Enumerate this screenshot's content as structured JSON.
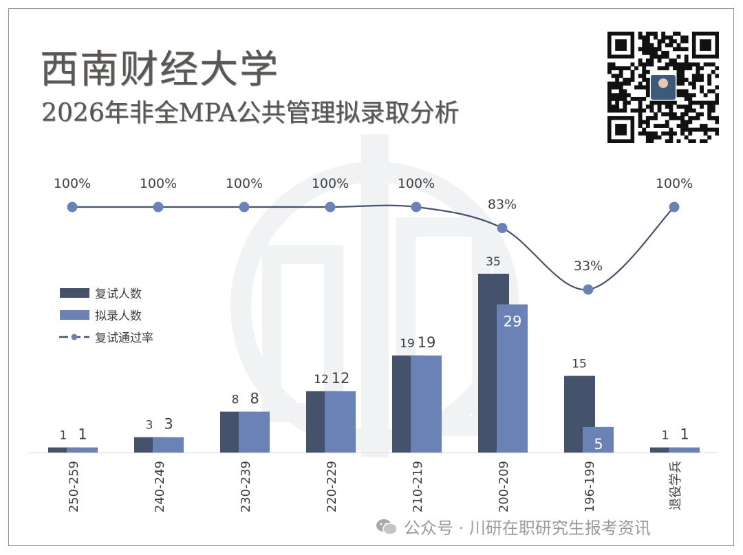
{
  "header": {
    "title": "西南财经大学",
    "subtitle": "2026年非全MPA公共管理拟录取分析"
  },
  "footer": {
    "icon": "wechat-icon",
    "text": "公众号 · 川研在职研究生报考资讯"
  },
  "chart_data": {
    "type": "bar",
    "categories": [
      "250-259",
      "240-249",
      "230-239",
      "220-229",
      "210-219",
      "200-209",
      "196-199",
      "退役学兵"
    ],
    "series": [
      {
        "name": "复试人数",
        "type": "bar",
        "color": "#44526b",
        "values": [
          1,
          3,
          8,
          12,
          19,
          35,
          15,
          1
        ]
      },
      {
        "name": "拟录人数",
        "type": "bar",
        "color": "#6a82b5",
        "values": [
          1,
          3,
          8,
          12,
          19,
          29,
          5,
          1
        ]
      },
      {
        "name": "复试通过率",
        "type": "line",
        "color": "#44526b",
        "marker_color": "#6a82b5",
        "values": [
          100,
          100,
          100,
          100,
          100,
          83,
          33,
          100
        ],
        "labels": [
          "100%",
          "100%",
          "100%",
          "100%",
          "100%",
          "83%",
          "33%",
          "100%"
        ]
      }
    ],
    "legend": "left-middle",
    "grid": false
  }
}
